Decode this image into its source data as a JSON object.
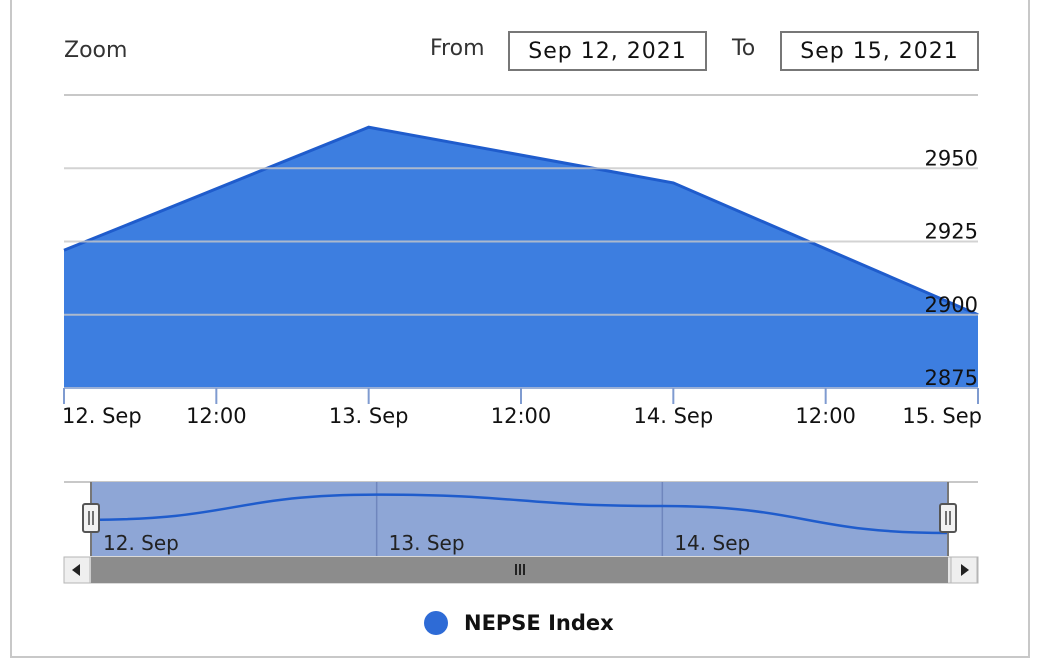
{
  "zoom": {
    "label": "Zoom"
  },
  "range_selector": {
    "from_label": "From",
    "from_value": "Sep 12, 2021",
    "to_label": "To",
    "to_value": "Sep 15, 2021"
  },
  "colors": {
    "area_fill": "#3d7ee0",
    "area_line": "#1f5ccc",
    "gridline": "#c8c8c8",
    "navigator_mask": "#8ea6d6",
    "scrollbar": "#8c8c8c"
  },
  "chart_data": {
    "type": "area",
    "x": [
      "2021-09-12",
      "2021-09-13",
      "2021-09-14",
      "2021-09-15"
    ],
    "series": [
      {
        "name": "NEPSE Index",
        "values": [
          2922,
          2964,
          2945,
          2900
        ]
      }
    ],
    "ylim": [
      2875,
      2975
    ],
    "y_ticks": [
      "2950",
      "2925",
      "2900",
      "2875"
    ],
    "x_tick_labels": [
      "12. Sep",
      "12:00",
      "13. Sep",
      "12:00",
      "14. Sep",
      "12:00",
      "15. Sep"
    ],
    "navigator_labels": [
      "12. Sep",
      "13. Sep",
      "14. Sep"
    ],
    "grid": true,
    "legend": "bottom-center"
  }
}
